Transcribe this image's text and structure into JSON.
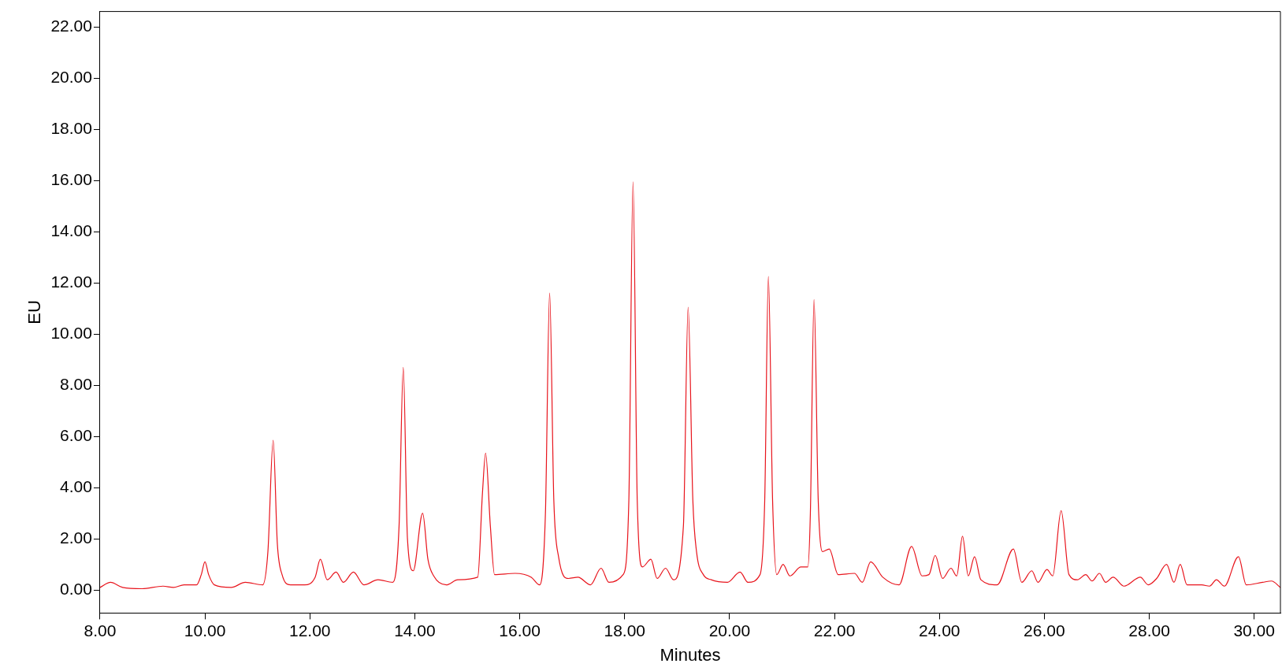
{
  "chart_data": {
    "type": "line",
    "xlabel": "Minutes",
    "ylabel": "EU",
    "xlim": [
      8.0,
      30.5
    ],
    "ylim": [
      -0.9,
      22.6
    ],
    "xticks": [
      {
        "value": 8,
        "label": "8.00"
      },
      {
        "value": 10,
        "label": "10.00"
      },
      {
        "value": 12,
        "label": "12.00"
      },
      {
        "value": 14,
        "label": "14.00"
      },
      {
        "value": 16,
        "label": "16.00"
      },
      {
        "value": 18,
        "label": "18.00"
      },
      {
        "value": 20,
        "label": "20.00"
      },
      {
        "value": 22,
        "label": "22.00"
      },
      {
        "value": 24,
        "label": "24.00"
      },
      {
        "value": 26,
        "label": "26.00"
      },
      {
        "value": 28,
        "label": "28.00"
      },
      {
        "value": 30,
        "label": "30.00"
      }
    ],
    "yticks": [
      {
        "value": 0,
        "label": "0.00"
      },
      {
        "value": 2,
        "label": "2.00"
      },
      {
        "value": 4,
        "label": "4.00"
      },
      {
        "value": 6,
        "label": "6.00"
      },
      {
        "value": 8,
        "label": "8.00"
      },
      {
        "value": 10,
        "label": "10.00"
      },
      {
        "value": 12,
        "label": "12.00"
      },
      {
        "value": 14,
        "label": "14.00"
      },
      {
        "value": 16,
        "label": "16.00"
      },
      {
        "value": 18,
        "label": "18.00"
      },
      {
        "value": 20,
        "label": "20.00"
      },
      {
        "value": 22,
        "label": "22.00"
      }
    ],
    "grid": false,
    "legend": false,
    "marker": "none",
    "line_style": "solid",
    "series": [
      {
        "color": "#e8141c",
        "x": [
          8.0,
          8.2,
          8.43,
          8.8,
          9.2,
          9.4,
          9.6,
          9.84,
          9.93,
          10.0,
          10.07,
          10.18,
          10.5,
          10.77,
          11.1,
          11.2,
          11.3,
          11.38,
          11.47,
          11.63,
          11.9,
          12.1,
          12.2,
          12.33,
          12.5,
          12.64,
          12.83,
          13.03,
          13.3,
          13.58,
          13.7,
          13.78,
          13.86,
          13.97,
          14.15,
          14.25,
          14.36,
          14.6,
          14.82,
          15.2,
          15.29,
          15.35,
          15.44,
          15.52,
          15.91,
          16.22,
          16.38,
          16.49,
          16.57,
          16.65,
          16.74,
          16.93,
          17.11,
          17.35,
          17.55,
          17.7,
          17.97,
          18.08,
          18.16,
          18.24,
          18.34,
          18.5,
          18.62,
          18.78,
          18.93,
          19.12,
          19.21,
          19.3,
          19.37,
          19.5,
          19.65,
          19.96,
          20.2,
          20.35,
          20.58,
          20.67,
          20.74,
          20.82,
          20.9,
          21.02,
          21.15,
          21.36,
          21.49,
          21.54,
          21.61,
          21.69,
          21.77,
          21.9,
          22.07,
          22.38,
          22.53,
          22.69,
          22.92,
          23.23,
          23.47,
          23.67,
          23.8,
          23.92,
          24.06,
          24.22,
          24.33,
          24.44,
          24.55,
          24.67,
          24.79,
          25.1,
          25.41,
          25.57,
          25.76,
          25.88,
          26.05,
          26.16,
          26.32,
          26.47,
          26.63,
          26.79,
          26.91,
          27.05,
          27.17,
          27.31,
          27.52,
          27.83,
          27.98,
          28.14,
          28.33,
          28.47,
          28.59,
          28.72,
          29.0,
          29.15,
          29.28,
          29.43,
          29.7,
          29.85,
          30.16,
          30.33,
          30.5
        ],
        "values": [
          0.1,
          0.3,
          0.1,
          0.05,
          0.15,
          0.1,
          0.2,
          0.2,
          0.6,
          1.1,
          0.6,
          0.2,
          0.1,
          0.3,
          0.2,
          1.5,
          5.85,
          1.8,
          0.6,
          0.2,
          0.2,
          0.5,
          1.2,
          0.4,
          0.7,
          0.3,
          0.7,
          0.2,
          0.4,
          0.3,
          2.5,
          8.7,
          2.0,
          0.75,
          3.0,
          1.2,
          0.55,
          0.2,
          0.4,
          0.5,
          3.8,
          5.35,
          2.5,
          0.6,
          0.65,
          0.5,
          0.2,
          3.0,
          11.6,
          3.5,
          1.3,
          0.45,
          0.5,
          0.2,
          0.85,
          0.3,
          0.6,
          3.5,
          15.95,
          3.5,
          0.9,
          1.2,
          0.45,
          0.85,
          0.4,
          2.5,
          11.05,
          3.5,
          1.5,
          0.6,
          0.4,
          0.3,
          0.7,
          0.3,
          0.6,
          3.5,
          12.25,
          3.5,
          0.6,
          1.0,
          0.55,
          0.9,
          0.9,
          3.0,
          11.35,
          3.5,
          1.5,
          1.6,
          0.6,
          0.65,
          0.3,
          1.1,
          0.5,
          0.2,
          1.7,
          0.55,
          0.6,
          1.35,
          0.45,
          0.85,
          0.55,
          2.1,
          0.55,
          1.3,
          0.4,
          0.2,
          1.6,
          0.3,
          0.75,
          0.3,
          0.8,
          0.55,
          3.1,
          0.6,
          0.4,
          0.6,
          0.35,
          0.65,
          0.3,
          0.5,
          0.15,
          0.5,
          0.2,
          0.45,
          1.0,
          0.3,
          1.0,
          0.2,
          0.2,
          0.15,
          0.4,
          0.15,
          1.3,
          0.2,
          0.3,
          0.35,
          0.1
        ]
      }
    ]
  }
}
